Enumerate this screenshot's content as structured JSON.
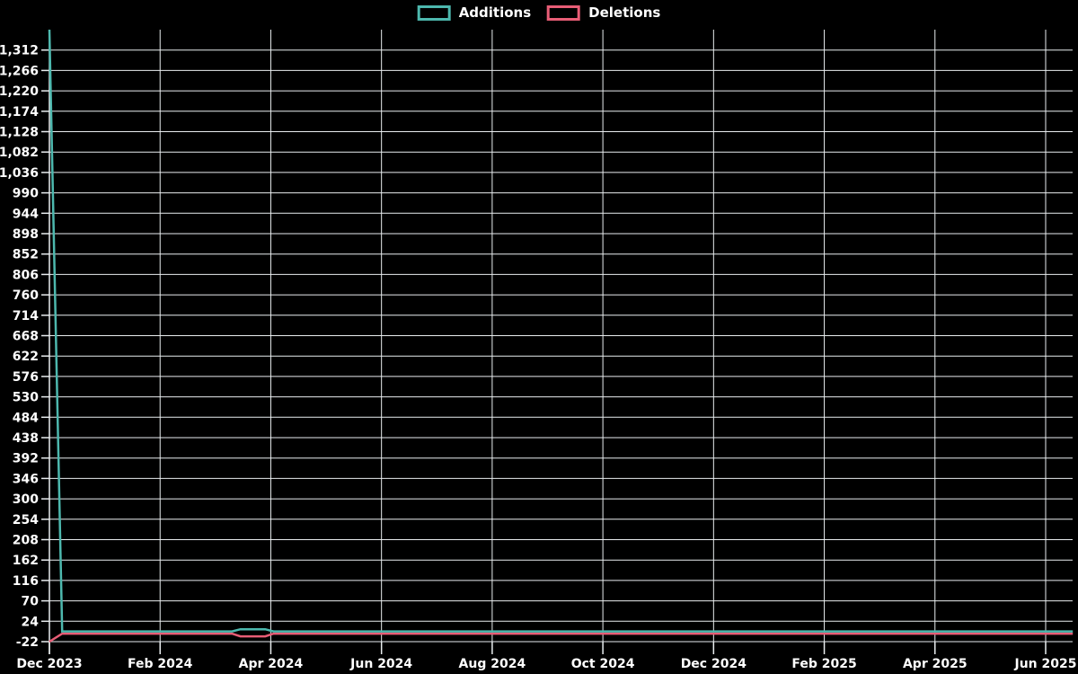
{
  "legend": {
    "additions_label": "Additions",
    "deletions_label": "Deletions"
  },
  "colors": {
    "background": "#000000",
    "text": "#ffffff",
    "grid": "#e9edef",
    "additions": "#4db8ae",
    "deletions": "#e85d76"
  },
  "chart_data": {
    "type": "line",
    "title": "",
    "legend_position": "top-center",
    "grid": true,
    "x_tick_labels": [
      "Dec 2023",
      "Feb 2024",
      "Apr 2024",
      "Jun 2024",
      "Aug 2024",
      "Oct 2024",
      "Dec 2024",
      "Feb 2025",
      "Apr 2025",
      "Jun 2025"
    ],
    "x_axis": {
      "start": "Dec 2023",
      "end": "Jun 2025",
      "months_span": 18,
      "tick_interval_months": 2
    },
    "y_axis": {
      "min": -22,
      "max": 1358,
      "step": 46
    },
    "y_tick_labels": [
      "1,312",
      "1,266",
      "1,220",
      "1,174",
      "1,128",
      "1,082",
      "1,036",
      "990",
      "944",
      "898",
      "852",
      "806",
      "760",
      "714",
      "668",
      "622",
      "576",
      "530",
      "484",
      "438",
      "392",
      "346",
      "300",
      "254",
      "208",
      "162",
      "116",
      "70",
      "24",
      "-22"
    ],
    "series": [
      {
        "name": "Additions",
        "color": "#4db8ae",
        "points_month_value": [
          [
            0,
            1358
          ],
          [
            0.23,
            1
          ],
          [
            3.3,
            1
          ],
          [
            3.45,
            6
          ],
          [
            3.9,
            6
          ],
          [
            4.05,
            1
          ],
          [
            18.49,
            1
          ]
        ]
      },
      {
        "name": "Deletions",
        "color": "#e85d76",
        "points_month_value": [
          [
            0,
            -22
          ],
          [
            0.23,
            -4
          ],
          [
            3.3,
            -4
          ],
          [
            3.45,
            -10
          ],
          [
            3.9,
            -10
          ],
          [
            4.05,
            -4
          ],
          [
            18.49,
            -4
          ]
        ]
      }
    ],
    "annotations": {
      "peak": "Additions spike to axis maximum (~1,358) at Dec 2023; Deletions at minimum (-22) at Dec 2023; both series flat near 0 afterwards with a small blip around late Mar / early Apr 2024."
    }
  }
}
